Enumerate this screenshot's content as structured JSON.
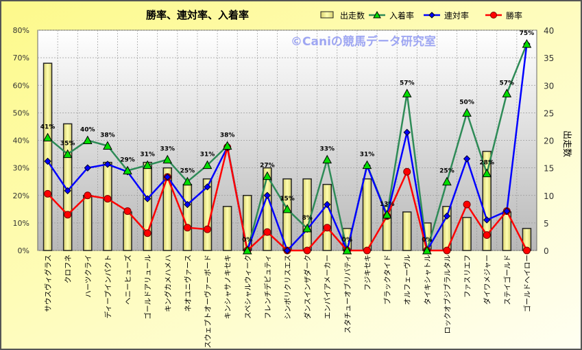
{
  "chart_data": {
    "type": "bar+line",
    "title": "勝率、連対率、入着率",
    "watermark": "©Caniの競馬データ研究室",
    "ylabel_right": "出走数",
    "ylim_left": [
      0,
      80
    ],
    "ylim_right": [
      0,
      40
    ],
    "left_ticks": [
      "0%",
      "10%",
      "20%",
      "30%",
      "40%",
      "50%",
      "60%",
      "70%",
      "80%"
    ],
    "right_ticks": [
      "0",
      "5",
      "10",
      "15",
      "20",
      "25",
      "30",
      "35",
      "40"
    ],
    "legend_position": "top-right",
    "categories": [
      "サウスヴィグラス",
      "クロフネ",
      "ハーツクライ",
      "ディープインパクト",
      "ヘニーヒューズ",
      "ゴールドアリュール",
      "キングカメハメハ",
      "ネオユニヴァース",
      "スウェプトオーヴァーボード",
      "キンシャサノキセキ",
      "スペシャルウィーク",
      "フレンチデピュティ",
      "シンボリクリスエス",
      "ダンスインザダーク",
      "エンパイアメーカー",
      "スタチューオブリバティ",
      "フジキセキ",
      "ブラックタイド",
      "オルフェーヴル",
      "タイキシャトル",
      "ロックオブジブラルタル",
      "ファスリエフ",
      "ダイワメジャー",
      "ステイゴールド",
      "ゴールドヘイロー"
    ],
    "series": [
      {
        "name": "出走数",
        "type": "bar",
        "axis": "right",
        "color": "#f5f090",
        "values": [
          34,
          23,
          10,
          16,
          7,
          16,
          15,
          12,
          13,
          8,
          10,
          15,
          13,
          13,
          12,
          4,
          13,
          8,
          7,
          5,
          8,
          6,
          18,
          7,
          4
        ]
      },
      {
        "name": "入着率",
        "type": "line",
        "axis": "left",
        "color": "#2e8b57",
        "marker": "triangle",
        "values": [
          41,
          35,
          40,
          38,
          29,
          31,
          33,
          25,
          31,
          38,
          0,
          27,
          15,
          8,
          33,
          0,
          31,
          13,
          57,
          0,
          25,
          50,
          28,
          57,
          75
        ],
        "labels": [
          "41%",
          "35%",
          "40%",
          "38%",
          "29%",
          "31%",
          "33%",
          "25%",
          "31%",
          "38%",
          "0%",
          "27%",
          "15%",
          "8%",
          "33%",
          "0%",
          "31%",
          "13%",
          "57%",
          "0%",
          "25%",
          "50%",
          "28%",
          "57%",
          "75%"
        ]
      },
      {
        "name": "連対率",
        "type": "line",
        "axis": "left",
        "color": "#0000ff",
        "marker": "diamond",
        "values": [
          32.4,
          21.7,
          30,
          31.3,
          28.6,
          18.8,
          26.7,
          16.7,
          23.1,
          37.5,
          0,
          20,
          0,
          7.7,
          16.7,
          0,
          30.8,
          12.5,
          42.9,
          0,
          12.5,
          33.3,
          11.1,
          14.3,
          75
        ]
      },
      {
        "name": "勝率",
        "type": "line",
        "axis": "left",
        "color": "#ff0000",
        "marker": "circle",
        "values": [
          20.6,
          13,
          20,
          18.8,
          14.3,
          6.3,
          26.7,
          8.3,
          7.7,
          37.5,
          0,
          6.7,
          0,
          0,
          8.3,
          0,
          0,
          12.5,
          28.6,
          0,
          0,
          16.7,
          5.6,
          14.3,
          0
        ]
      }
    ]
  }
}
